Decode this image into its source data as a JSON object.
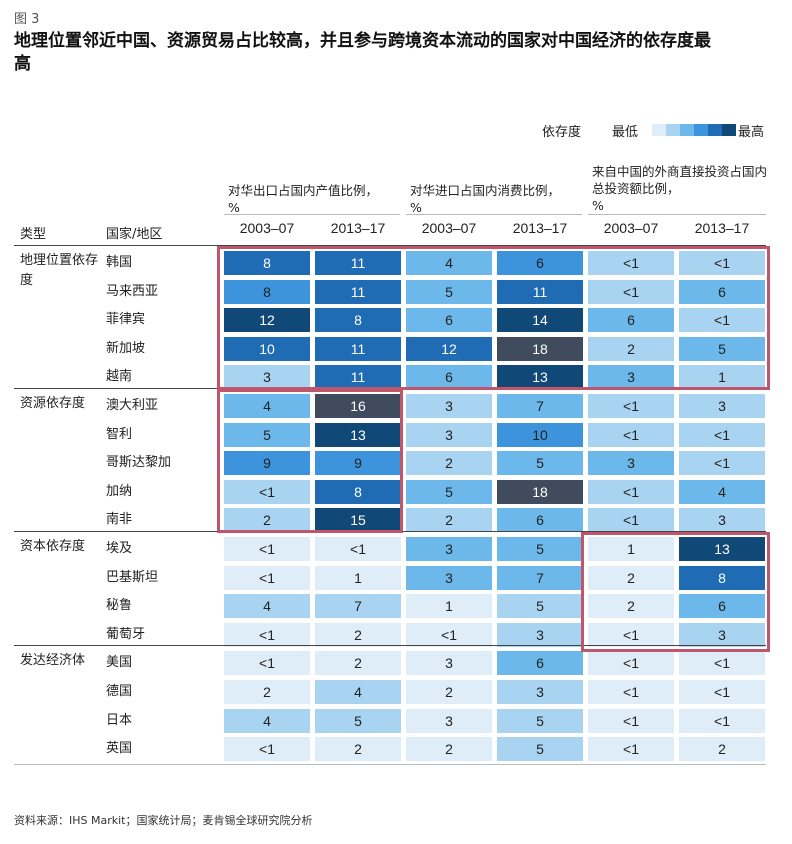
{
  "figure_label": "图 3",
  "title": "地理位置邻近中国、资源贸易占比较高，并且参与跨境资本流动的国家对中国经济的依存度最高",
  "legend": {
    "label": "依存度",
    "low": "最低",
    "high": "最高",
    "colors": [
      "#deedf8",
      "#a8d4f2",
      "#6cb8ea",
      "#3d94dc",
      "#1f6bb4",
      "#104878",
      "#404b5e"
    ]
  },
  "header": {
    "group_labels": [
      "对华出口占国内产值比例，",
      "对华进口占国内消费比例，",
      "来自中国的外商直接投资占国内总投资额比例，"
    ],
    "percent_sign": "%",
    "category_col": "类型",
    "country_col": "国家/地区",
    "periods": [
      "2003–07",
      "2013–17",
      "2003–07",
      "2013–17",
      "2003–07",
      "2013–17"
    ]
  },
  "chart_data": {
    "type": "table",
    "title": "地理位置邻近中国、资源贸易占比较高，并且参与跨境资本流动的国家对中国经济的依存度最高",
    "columns": [
      "对华出口占国内产值比例，% 2003–07",
      "对华出口占国内产值比例，% 2013–17",
      "对华进口占国内消费比例，% 2003–07",
      "对华进口占国内消费比例，% 2013–17",
      "来自中国的外商直接投资占国内总投资额比例，% 2003–07",
      "来自中国的外商直接投资占国内总投资额比例，% 2013–17"
    ],
    "groups": [
      {
        "category": "地理位置依存度",
        "rows": [
          {
            "country": "韩国",
            "values": [
              "8",
              "11",
              "4",
              "6",
              "<1",
              "<1"
            ],
            "levels": [
              4,
              4,
              2,
              3,
              1,
              1
            ]
          },
          {
            "country": "马来西亚",
            "values": [
              "8",
              "11",
              "5",
              "11",
              "<1",
              "6"
            ],
            "levels": [
              3,
              4,
              2,
              4,
              1,
              2
            ]
          },
          {
            "country": "菲律宾",
            "values": [
              "12",
              "8",
              "6",
              "14",
              "6",
              "<1"
            ],
            "levels": [
              5,
              4,
              2,
              5,
              2,
              1
            ]
          },
          {
            "country": "新加坡",
            "values": [
              "10",
              "11",
              "12",
              "18",
              "2",
              "5"
            ],
            "levels": [
              4,
              4,
              4,
              6,
              1,
              2
            ]
          },
          {
            "country": "越南",
            "values": [
              "3",
              "11",
              "6",
              "13",
              "3",
              "1"
            ],
            "levels": [
              1,
              4,
              2,
              5,
              2,
              1
            ]
          }
        ]
      },
      {
        "category": "资源依存度",
        "rows": [
          {
            "country": "澳大利亚",
            "values": [
              "4",
              "16",
              "3",
              "7",
              "<1",
              "3"
            ],
            "levels": [
              2,
              6,
              1,
              2,
              1,
              1
            ]
          },
          {
            "country": "智利",
            "values": [
              "5",
              "13",
              "3",
              "10",
              "<1",
              "<1"
            ],
            "levels": [
              2,
              5,
              1,
              3,
              1,
              1
            ]
          },
          {
            "country": "哥斯达黎加",
            "values": [
              "9",
              "9",
              "2",
              "5",
              "3",
              "<1"
            ],
            "levels": [
              3,
              3,
              1,
              2,
              2,
              1
            ]
          },
          {
            "country": "加纳",
            "values": [
              "<1",
              "8",
              "5",
              "18",
              "<1",
              "4"
            ],
            "levels": [
              1,
              4,
              2,
              6,
              1,
              2
            ]
          },
          {
            "country": "南非",
            "values": [
              "2",
              "15",
              "2",
              "6",
              "<1",
              "3"
            ],
            "levels": [
              1,
              5,
              1,
              2,
              1,
              1
            ]
          }
        ]
      },
      {
        "category": "资本依存度",
        "rows": [
          {
            "country": "埃及",
            "values": [
              "<1",
              "<1",
              "3",
              "5",
              "1",
              "13"
            ],
            "levels": [
              0,
              0,
              2,
              2,
              0,
              5
            ]
          },
          {
            "country": "巴基斯坦",
            "values": [
              "<1",
              "1",
              "3",
              "7",
              "2",
              "8"
            ],
            "levels": [
              0,
              0,
              2,
              2,
              0,
              4
            ]
          },
          {
            "country": "秘鲁",
            "values": [
              "4",
              "7",
              "1",
              "5",
              "2",
              "6"
            ],
            "levels": [
              1,
              1,
              0,
              1,
              0,
              2
            ]
          },
          {
            "country": "葡萄牙",
            "values": [
              "<1",
              "2",
              "<1",
              "3",
              "<1",
              "3"
            ],
            "levels": [
              0,
              0,
              0,
              1,
              0,
              1
            ]
          }
        ]
      },
      {
        "category": "发达经济体",
        "rows": [
          {
            "country": "美国",
            "values": [
              "<1",
              "2",
              "3",
              "6",
              "<1",
              "<1"
            ],
            "levels": [
              0,
              0,
              0,
              2,
              0,
              0
            ]
          },
          {
            "country": "德国",
            "values": [
              "2",
              "4",
              "2",
              "3",
              "<1",
              "<1"
            ],
            "levels": [
              0,
              1,
              0,
              1,
              0,
              0
            ]
          },
          {
            "country": "日本",
            "values": [
              "4",
              "5",
              "3",
              "5",
              "<1",
              "<1"
            ],
            "levels": [
              1,
              1,
              0,
              1,
              0,
              0
            ]
          },
          {
            "country": "英国",
            "values": [
              "<1",
              "2",
              "2",
              "5",
              "<1",
              "2"
            ],
            "levels": [
              0,
              0,
              0,
              1,
              0,
              0
            ]
          }
        ]
      }
    ]
  },
  "source": "资料来源：IHS Markit；国家统计局；麦肯锡全球研究院分析"
}
